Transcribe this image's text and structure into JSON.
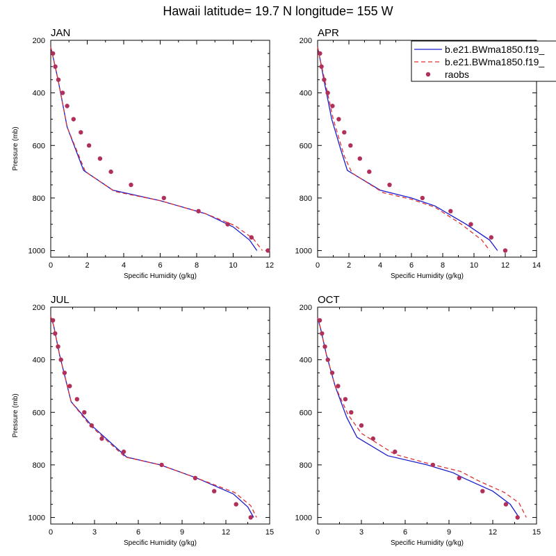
{
  "title": "Hawaii  latitude= 19.7 N longitude= 155 W",
  "legend": {
    "entries": [
      {
        "label": "b.e21.BWma1850.f19_",
        "style": "solid",
        "color": "#1a1acc"
      },
      {
        "label": "b.e21.BWma1850.f19_",
        "style": "dashed",
        "color": "#e03030"
      },
      {
        "label": "raobs",
        "style": "marker",
        "color": "#b0305a"
      }
    ]
  },
  "colors": {
    "model1": "#1a1acc",
    "model2": "#e03030",
    "obs": "#b0305a"
  },
  "chart_data": [
    {
      "type": "line",
      "title": "JAN",
      "xlabel": "Specific Humidity (g/kg)",
      "ylabel": "Pressure (mb)",
      "xlim": [
        0,
        12
      ],
      "ylim": [
        1025,
        200
      ],
      "xticks": [
        0,
        2,
        4,
        6,
        8,
        10,
        12
      ],
      "yticks": [
        200,
        400,
        600,
        800,
        1000
      ],
      "series": [
        {
          "name": "b.e21.BWma1850.f19_ (solid)",
          "x": [
            0.0,
            0.15,
            0.4,
            0.9,
            1.8,
            3.4,
            6.0,
            8.5,
            10.0,
            10.9,
            11.3
          ],
          "y": [
            225,
            270,
            350,
            530,
            695,
            770,
            810,
            860,
            910,
            960,
            1000
          ]
        },
        {
          "name": "b.e21.BWma1850.f19_ (dashed)",
          "x": [
            0.0,
            0.15,
            0.4,
            0.9,
            1.9,
            3.5,
            6.0,
            8.5,
            10.1,
            11.1,
            11.6
          ],
          "y": [
            225,
            270,
            350,
            530,
            700,
            775,
            810,
            860,
            905,
            955,
            1000
          ]
        },
        {
          "name": "raobs",
          "x": [
            0.12,
            0.25,
            0.42,
            0.65,
            0.9,
            1.25,
            1.65,
            2.1,
            2.7,
            3.3,
            4.4,
            6.2,
            8.1,
            9.7,
            11.0,
            11.9
          ],
          "y": [
            250,
            300,
            350,
            400,
            450,
            500,
            550,
            600,
            650,
            700,
            750,
            800,
            850,
            900,
            950,
            1000
          ]
        }
      ]
    },
    {
      "type": "line",
      "title": "APR",
      "xlabel": "Specific Humidity (g/kg)",
      "ylabel": "",
      "xlim": [
        0,
        14
      ],
      "ylim": [
        1025,
        200
      ],
      "xticks": [
        0,
        2,
        4,
        6,
        8,
        10,
        12,
        14
      ],
      "yticks": [
        200,
        400,
        600,
        800,
        1000
      ],
      "series": [
        {
          "name": "b.e21.BWma1850.f19_ (solid)",
          "x": [
            0.0,
            0.15,
            0.4,
            0.9,
            1.5,
            1.9,
            4.0,
            6.0,
            7.5,
            9.5,
            11.0,
            11.5
          ],
          "y": [
            225,
            270,
            350,
            500,
            620,
            695,
            770,
            800,
            830,
            900,
            960,
            1000
          ]
        },
        {
          "name": "b.e21.BWma1850.f19_ (dashed)",
          "x": [
            0.0,
            0.15,
            0.45,
            1.0,
            1.7,
            2.2,
            4.2,
            6.0,
            7.5,
            9.2,
            10.5,
            11.0
          ],
          "y": [
            225,
            270,
            350,
            500,
            640,
            705,
            780,
            805,
            835,
            900,
            960,
            1000
          ]
        },
        {
          "name": "raobs",
          "x": [
            0.15,
            0.25,
            0.42,
            0.65,
            0.95,
            1.35,
            1.7,
            2.1,
            2.7,
            3.3,
            4.6,
            6.7,
            8.5,
            9.8,
            11.1,
            12.0
          ],
          "y": [
            250,
            300,
            350,
            400,
            450,
            500,
            550,
            600,
            650,
            700,
            750,
            800,
            850,
            900,
            950,
            1000
          ]
        }
      ]
    },
    {
      "type": "line",
      "title": "JUL",
      "xlabel": "Specific Humidity (g/kg)",
      "ylabel": "Pressure (mb)",
      "xlim": [
        0,
        15
      ],
      "ylim": [
        1025,
        200
      ],
      "xticks": [
        0,
        3,
        6,
        9,
        12,
        15
      ],
      "yticks": [
        200,
        400,
        600,
        800,
        1000
      ],
      "series": [
        {
          "name": "b.e21.BWma1850.f19_ (solid)",
          "x": [
            0.0,
            0.2,
            0.6,
            1.4,
            2.8,
            5.2,
            7.5,
            10.0,
            12.5,
            13.5,
            13.9
          ],
          "y": [
            235,
            270,
            380,
            560,
            650,
            770,
            800,
            850,
            910,
            960,
            1000
          ]
        },
        {
          "name": "b.e21.BWma1850.f19_ (dashed)",
          "x": [
            0.0,
            0.2,
            0.6,
            1.4,
            2.7,
            5.1,
            7.5,
            10.0,
            12.6,
            13.7,
            14.1
          ],
          "y": [
            235,
            270,
            380,
            560,
            650,
            770,
            800,
            850,
            905,
            955,
            1000
          ]
        },
        {
          "name": "raobs",
          "x": [
            0.15,
            0.3,
            0.5,
            0.7,
            0.95,
            1.3,
            1.8,
            2.3,
            2.8,
            3.5,
            5.0,
            7.6,
            9.9,
            11.2,
            12.7,
            13.7
          ],
          "y": [
            250,
            300,
            350,
            400,
            450,
            500,
            550,
            600,
            650,
            700,
            750,
            800,
            850,
            900,
            950,
            1000
          ]
        }
      ]
    },
    {
      "type": "line",
      "title": "OCT",
      "xlabel": "Specific Humidity (g/kg)",
      "ylabel": "",
      "xlim": [
        0,
        15
      ],
      "ylim": [
        1025,
        200
      ],
      "xticks": [
        0,
        3,
        6,
        9,
        12,
        15
      ],
      "yticks": [
        200,
        400,
        600,
        800,
        1000
      ],
      "series": [
        {
          "name": "b.e21.BWma1850.f19_ (solid)",
          "x": [
            0.0,
            0.2,
            0.6,
            1.2,
            2.0,
            2.7,
            4.8,
            7.5,
            9.3,
            10.0,
            12.0,
            13.2,
            13.8
          ],
          "y": [
            240,
            280,
            380,
            500,
            620,
            695,
            765,
            800,
            830,
            850,
            900,
            950,
            1000
          ]
        },
        {
          "name": "b.e21.BWma1850.f19_ (dashed)",
          "x": [
            0.0,
            0.2,
            0.6,
            1.2,
            2.1,
            3.0,
            5.3,
            7.6,
            9.8,
            11.0,
            12.8,
            13.8,
            14.3
          ],
          "y": [
            240,
            280,
            380,
            500,
            610,
            680,
            760,
            795,
            825,
            860,
            905,
            945,
            1000
          ]
        },
        {
          "name": "raobs",
          "x": [
            0.15,
            0.3,
            0.5,
            0.7,
            1.0,
            1.4,
            1.9,
            2.3,
            3.0,
            3.8,
            5.3,
            7.9,
            9.7,
            11.3,
            12.9,
            13.7
          ],
          "y": [
            250,
            300,
            350,
            400,
            450,
            500,
            550,
            600,
            650,
            700,
            750,
            800,
            850,
            900,
            950,
            1000
          ]
        }
      ]
    }
  ]
}
